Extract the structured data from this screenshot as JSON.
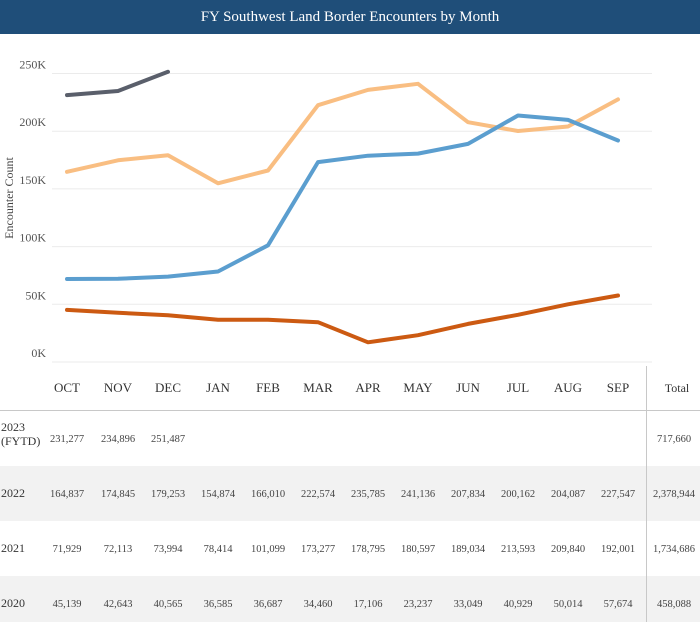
{
  "title": "FY Southwest Land Border Encounters by Month",
  "chart_data": {
    "type": "line",
    "title": "FY Southwest Land Border Encounters by Month",
    "xlabel": "",
    "ylabel": "Encounter Count",
    "ylim": [
      0,
      260000
    ],
    "y_ticks": [
      0,
      50000,
      100000,
      150000,
      200000,
      250000
    ],
    "y_tick_labels": [
      "0K",
      "50K",
      "100K",
      "150K",
      "200K",
      "250K"
    ],
    "grid": true,
    "categories": [
      "OCT",
      "NOV",
      "DEC",
      "JAN",
      "FEB",
      "MAR",
      "APR",
      "MAY",
      "JUN",
      "JUL",
      "AUG",
      "SEP"
    ],
    "series": [
      {
        "name": "2023\n(FYTD)",
        "color": "#5a5f6b",
        "values": [
          231277,
          234896,
          251487,
          null,
          null,
          null,
          null,
          null,
          null,
          null,
          null,
          null
        ]
      },
      {
        "name": "2022",
        "color": "#f9be82",
        "values": [
          164837,
          174845,
          179253,
          154874,
          166010,
          222574,
          235785,
          241136,
          207834,
          200162,
          204087,
          227547
        ]
      },
      {
        "name": "2021",
        "color": "#5b9ecf",
        "values": [
          71929,
          72113,
          73994,
          78414,
          101099,
          173277,
          178795,
          180597,
          189034,
          213593,
          209840,
          192001
        ]
      },
      {
        "name": "2020",
        "color": "#cc5a12",
        "values": [
          45139,
          42643,
          40565,
          36585,
          36687,
          34460,
          17106,
          23237,
          33049,
          40929,
          50014,
          57674
        ]
      }
    ]
  },
  "table": {
    "total_header": "Total",
    "rows": [
      {
        "label": "2023\n(FYTD)",
        "cells": [
          "231,277",
          "234,896",
          "251,487",
          "",
          "",
          "",
          "",
          "",
          "",
          "",
          "",
          ""
        ],
        "total": "717,660"
      },
      {
        "label": "2022",
        "cells": [
          "164,837",
          "174,845",
          "179,253",
          "154,874",
          "166,010",
          "222,574",
          "235,785",
          "241,136",
          "207,834",
          "200,162",
          "204,087",
          "227,547"
        ],
        "total": "2,378,944"
      },
      {
        "label": "2021",
        "cells": [
          "71,929",
          "72,113",
          "73,994",
          "78,414",
          "101,099",
          "173,277",
          "178,795",
          "180,597",
          "189,034",
          "213,593",
          "209,840",
          "192,001"
        ],
        "total": "1,734,686"
      },
      {
        "label": "2020",
        "cells": [
          "45,139",
          "42,643",
          "40,565",
          "36,585",
          "36,687",
          "34,460",
          "17,106",
          "23,237",
          "33,049",
          "40,929",
          "50,014",
          "57,674"
        ],
        "total": "458,088"
      }
    ]
  }
}
